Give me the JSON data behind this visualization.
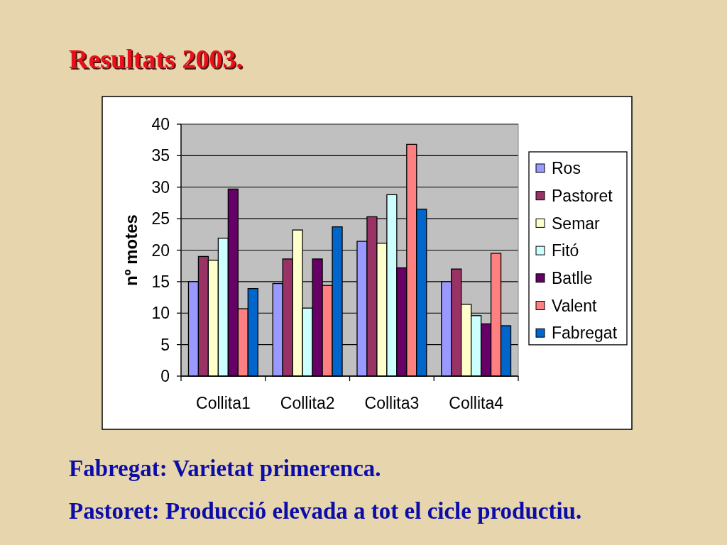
{
  "chart_data": {
    "type": "bar",
    "title": "Resultats 2003.",
    "ylabel": "nº motes",
    "categories": [
      "Collita1",
      "Collita2",
      "Collita3",
      "Collita4"
    ],
    "series": [
      {
        "name": "Ros",
        "color": "#9999ff",
        "values": [
          15.0,
          14.7,
          21.4,
          15.0
        ]
      },
      {
        "name": "Pastoret",
        "color": "#993366",
        "values": [
          19.0,
          18.6,
          25.3,
          17.0
        ]
      },
      {
        "name": "Semar",
        "color": "#ffffcc",
        "values": [
          18.4,
          23.2,
          21.1,
          11.4
        ]
      },
      {
        "name": "Fitó",
        "color": "#ccffff",
        "values": [
          21.9,
          10.8,
          28.8,
          9.6
        ]
      },
      {
        "name": "Batlle",
        "color": "#660066",
        "values": [
          29.7,
          18.6,
          17.2,
          8.3
        ]
      },
      {
        "name": "Valent",
        "color": "#ff8080",
        "values": [
          10.7,
          14.4,
          36.8,
          19.5
        ]
      },
      {
        "name": "Fabregat",
        "color": "#0066cc",
        "values": [
          13.9,
          23.7,
          26.5,
          8.0
        ]
      }
    ],
    "ylim": [
      0,
      40
    ],
    "yticks": [
      0,
      5,
      10,
      15,
      20,
      25,
      30,
      35,
      40
    ],
    "grid": "y",
    "legend": "right",
    "annotations": [
      "Fabregat: Varietat primerenca.",
      "Pastoret: Producció elevada a tot el cicle productiu."
    ]
  }
}
